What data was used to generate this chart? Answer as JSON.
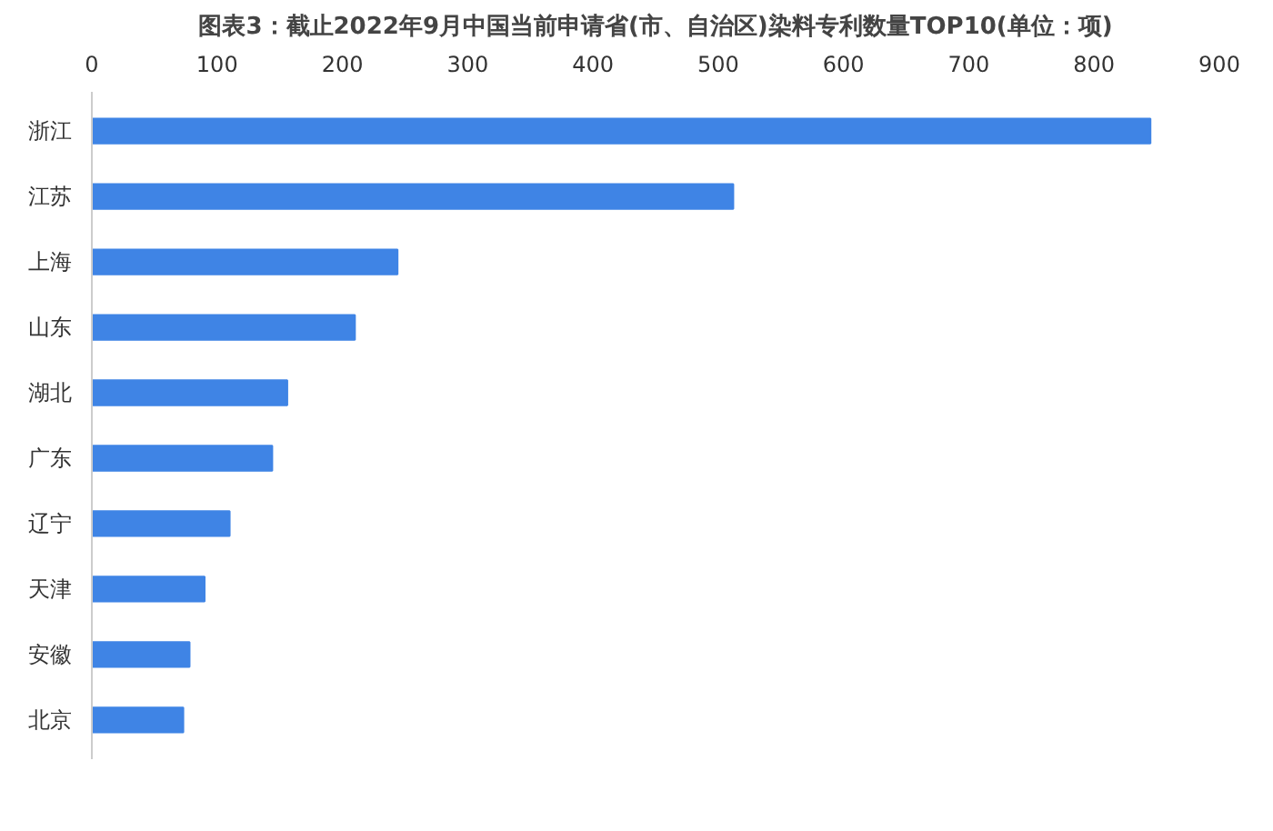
{
  "chart_data": {
    "type": "bar",
    "orientation": "horizontal",
    "title": "图表3：截止2022年9月中国当前申请省(市、自治区)染料专利数量TOP10(单位：项)",
    "categories": [
      "浙江",
      "江苏",
      "上海",
      "山东",
      "湖北",
      "广东",
      "辽宁",
      "天津",
      "安徽",
      "北京"
    ],
    "values": [
      845,
      512,
      244,
      210,
      156,
      144,
      110,
      90,
      78,
      73
    ],
    "color": "#3f84e5",
    "xlim": [
      0,
      900
    ],
    "xticks": [
      0,
      100,
      200,
      300,
      400,
      500,
      600,
      700,
      800,
      900
    ],
    "grid": false
  }
}
